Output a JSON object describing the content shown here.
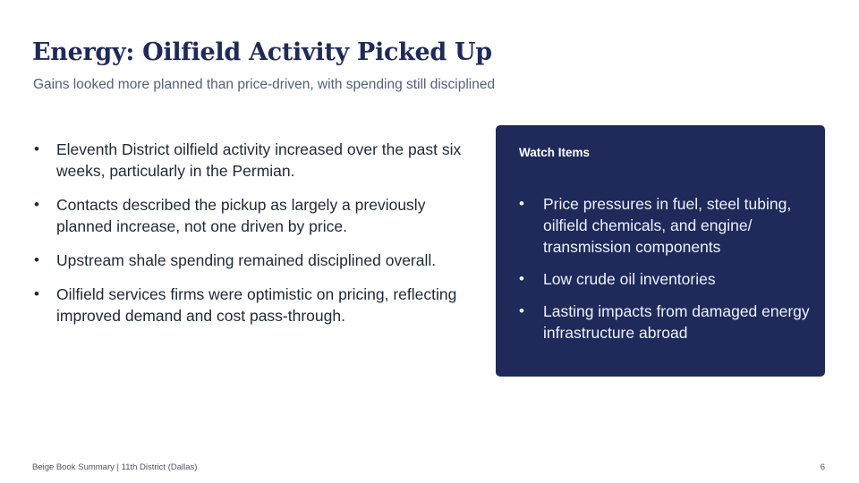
{
  "slide": {
    "title": "Energy: Oilfield Activity Picked Up",
    "subtitle": "Gains looked more planned than price-driven, with spending still disciplined",
    "bullets": [
      "Eleventh District oilfield activity increased over the past six weeks, particularly in the Permian.",
      "Contacts described the pickup as largely a previously planned increase, not one driven by price.",
      "Upstream shale spending remained disciplined overall.",
      "Oilfield services firms were optimistic on pricing, reflecting improved demand and cost pass-through."
    ],
    "watch_box": {
      "title": "Watch Items",
      "items": [
        "Price pressures in fuel, steel tubing, oilfield chemicals, and engine/ transmission components",
        "Low crude oil inventories",
        "Lasting impacts from damaged energy infrastructure abroad"
      ]
    }
  },
  "footer": {
    "left": "Beige Book Summary  |  11th District (Dallas)",
    "page_number": "6"
  },
  "colors": {
    "title": "#1f2a5a",
    "box_background": "#1f2a5a",
    "subtitle": "#52607a",
    "body_text": "#1f2937"
  }
}
